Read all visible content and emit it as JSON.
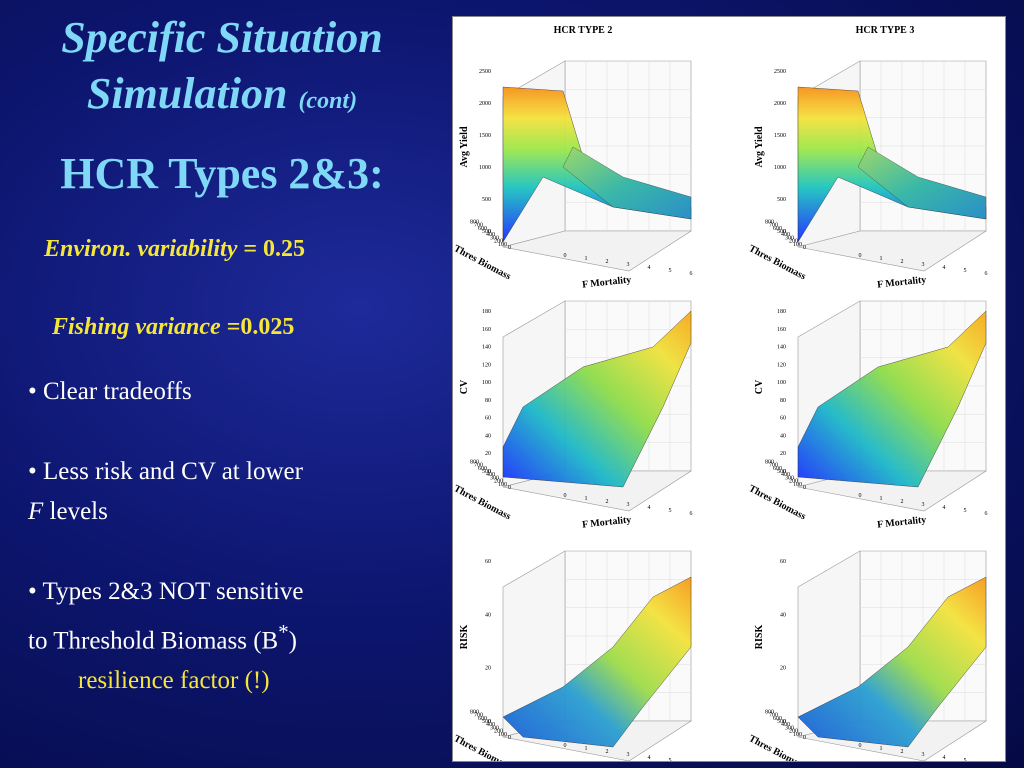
{
  "slide": {
    "title_line1": "Specific Situation",
    "title_line2": "Simulation",
    "title_cont": "(cont)",
    "subtitle": "HCR Types 2&3:",
    "param1_label": "Environ. variability",
    "param1_value": " = 0.25",
    "param2_label": "Fishing variance",
    "param2_value": " =0.025",
    "bullet1": "• Clear tradeoffs",
    "bullet2a": "• Less risk and CV at lower",
    "bullet2b_italic": "F",
    "bullet2b": " levels",
    "bullet3a": "• Types 2&3 NOT sensitive",
    "bullet3b": "to Threshold Biomass (B",
    "bullet3b_sup": "*",
    "bullet3b_end": ")",
    "bullet3c": "resilience factor (!)"
  },
  "figure": {
    "col_titles": [
      "HCR TYPE 2",
      "HCR TYPE 3"
    ],
    "x_label": "F Mortality",
    "depth_label": "Thres Biomass",
    "x_ticks": [
      "0",
      "1",
      "2",
      "3",
      "4",
      "5",
      "6"
    ],
    "depth_ticks": [
      "0",
      "100",
      "200",
      "300",
      "400",
      "500",
      "600",
      "700",
      "800"
    ],
    "rows": [
      {
        "ylabel": "Avg Yield",
        "yticks": [
          "0",
          "500",
          "1000",
          "1500",
          "2000",
          "2500"
        ]
      },
      {
        "ylabel": "CV",
        "yticks": [
          "0",
          "20",
          "40",
          "60",
          "80",
          "100",
          "120",
          "140",
          "160",
          "180"
        ]
      },
      {
        "ylabel": "RISK",
        "yticks": [
          "0",
          "20",
          "40",
          "60"
        ]
      }
    ]
  }
}
